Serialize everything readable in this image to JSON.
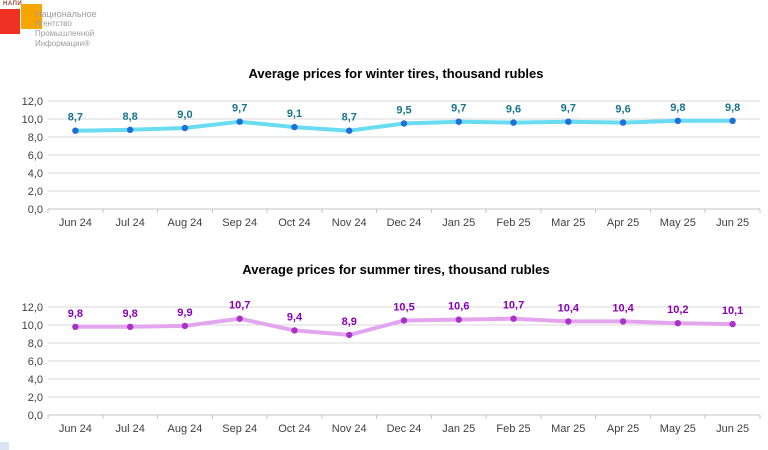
{
  "logo": {
    "napi": "НАПИ",
    "lines": [
      "Национальное",
      "Агентство",
      "Промышленной",
      "Информации®"
    ],
    "colors": {
      "red_square": "#ef3124",
      "orange_square": "#f7a600",
      "text": "#9c9c9c"
    }
  },
  "chart_data": [
    {
      "type": "line",
      "title": "Average prices for winter tires, thousand rubles",
      "categories": [
        "Jun 24",
        "Jul 24",
        "Aug 24",
        "Sep 24",
        "Oct 24",
        "Nov 24",
        "Dec 24",
        "Jan 25",
        "Feb 25",
        "Mar 25",
        "Apr 25",
        "May 25",
        "Jun 25"
      ],
      "values": [
        8.7,
        8.8,
        9.0,
        9.7,
        9.1,
        8.7,
        9.5,
        9.7,
        9.6,
        9.7,
        9.6,
        9.8,
        9.8
      ],
      "value_labels": [
        "8,7",
        "8,8",
        "9,0",
        "9,7",
        "9,1",
        "8,7",
        "9,5",
        "9,7",
        "9,6",
        "9,7",
        "9,6",
        "9,8",
        "9,8"
      ],
      "y_ticks": [
        "12,0",
        "10,0",
        "8,0",
        "6,0",
        "4,0",
        "2,0",
        "0,0"
      ],
      "ylim": [
        0,
        12
      ],
      "grid": true,
      "legend": "none",
      "style": {
        "line_color": "#69dcf2",
        "marker_color": "#1e6fd9",
        "label_color": "#17758a"
      }
    },
    {
      "type": "line",
      "title": "Average prices for summer tires, thousand rubles",
      "categories": [
        "Jun 24",
        "Jul 24",
        "Aug 24",
        "Sep 24",
        "Oct 24",
        "Nov 24",
        "Dec 24",
        "Jan 25",
        "Feb 25",
        "Mar 25",
        "Apr 25",
        "May 25",
        "Jun 25"
      ],
      "values": [
        9.8,
        9.8,
        9.9,
        10.7,
        9.4,
        8.9,
        10.5,
        10.6,
        10.7,
        10.4,
        10.4,
        10.2,
        10.1
      ],
      "value_labels": [
        "9,8",
        "9,8",
        "9,9",
        "10,7",
        "9,4",
        "8,9",
        "10,5",
        "10,6",
        "10,7",
        "10,4",
        "10,4",
        "10,2",
        "10,1"
      ],
      "y_ticks": [
        "12,0",
        "10,0",
        "8,0",
        "6,0",
        "4,0",
        "2,0",
        "0,0"
      ],
      "ylim": [
        0,
        12
      ],
      "grid": true,
      "legend": "none",
      "style": {
        "line_color": "#e3a6ee",
        "marker_color": "#ab32c8",
        "label_color": "#8a00b5"
      }
    }
  ]
}
